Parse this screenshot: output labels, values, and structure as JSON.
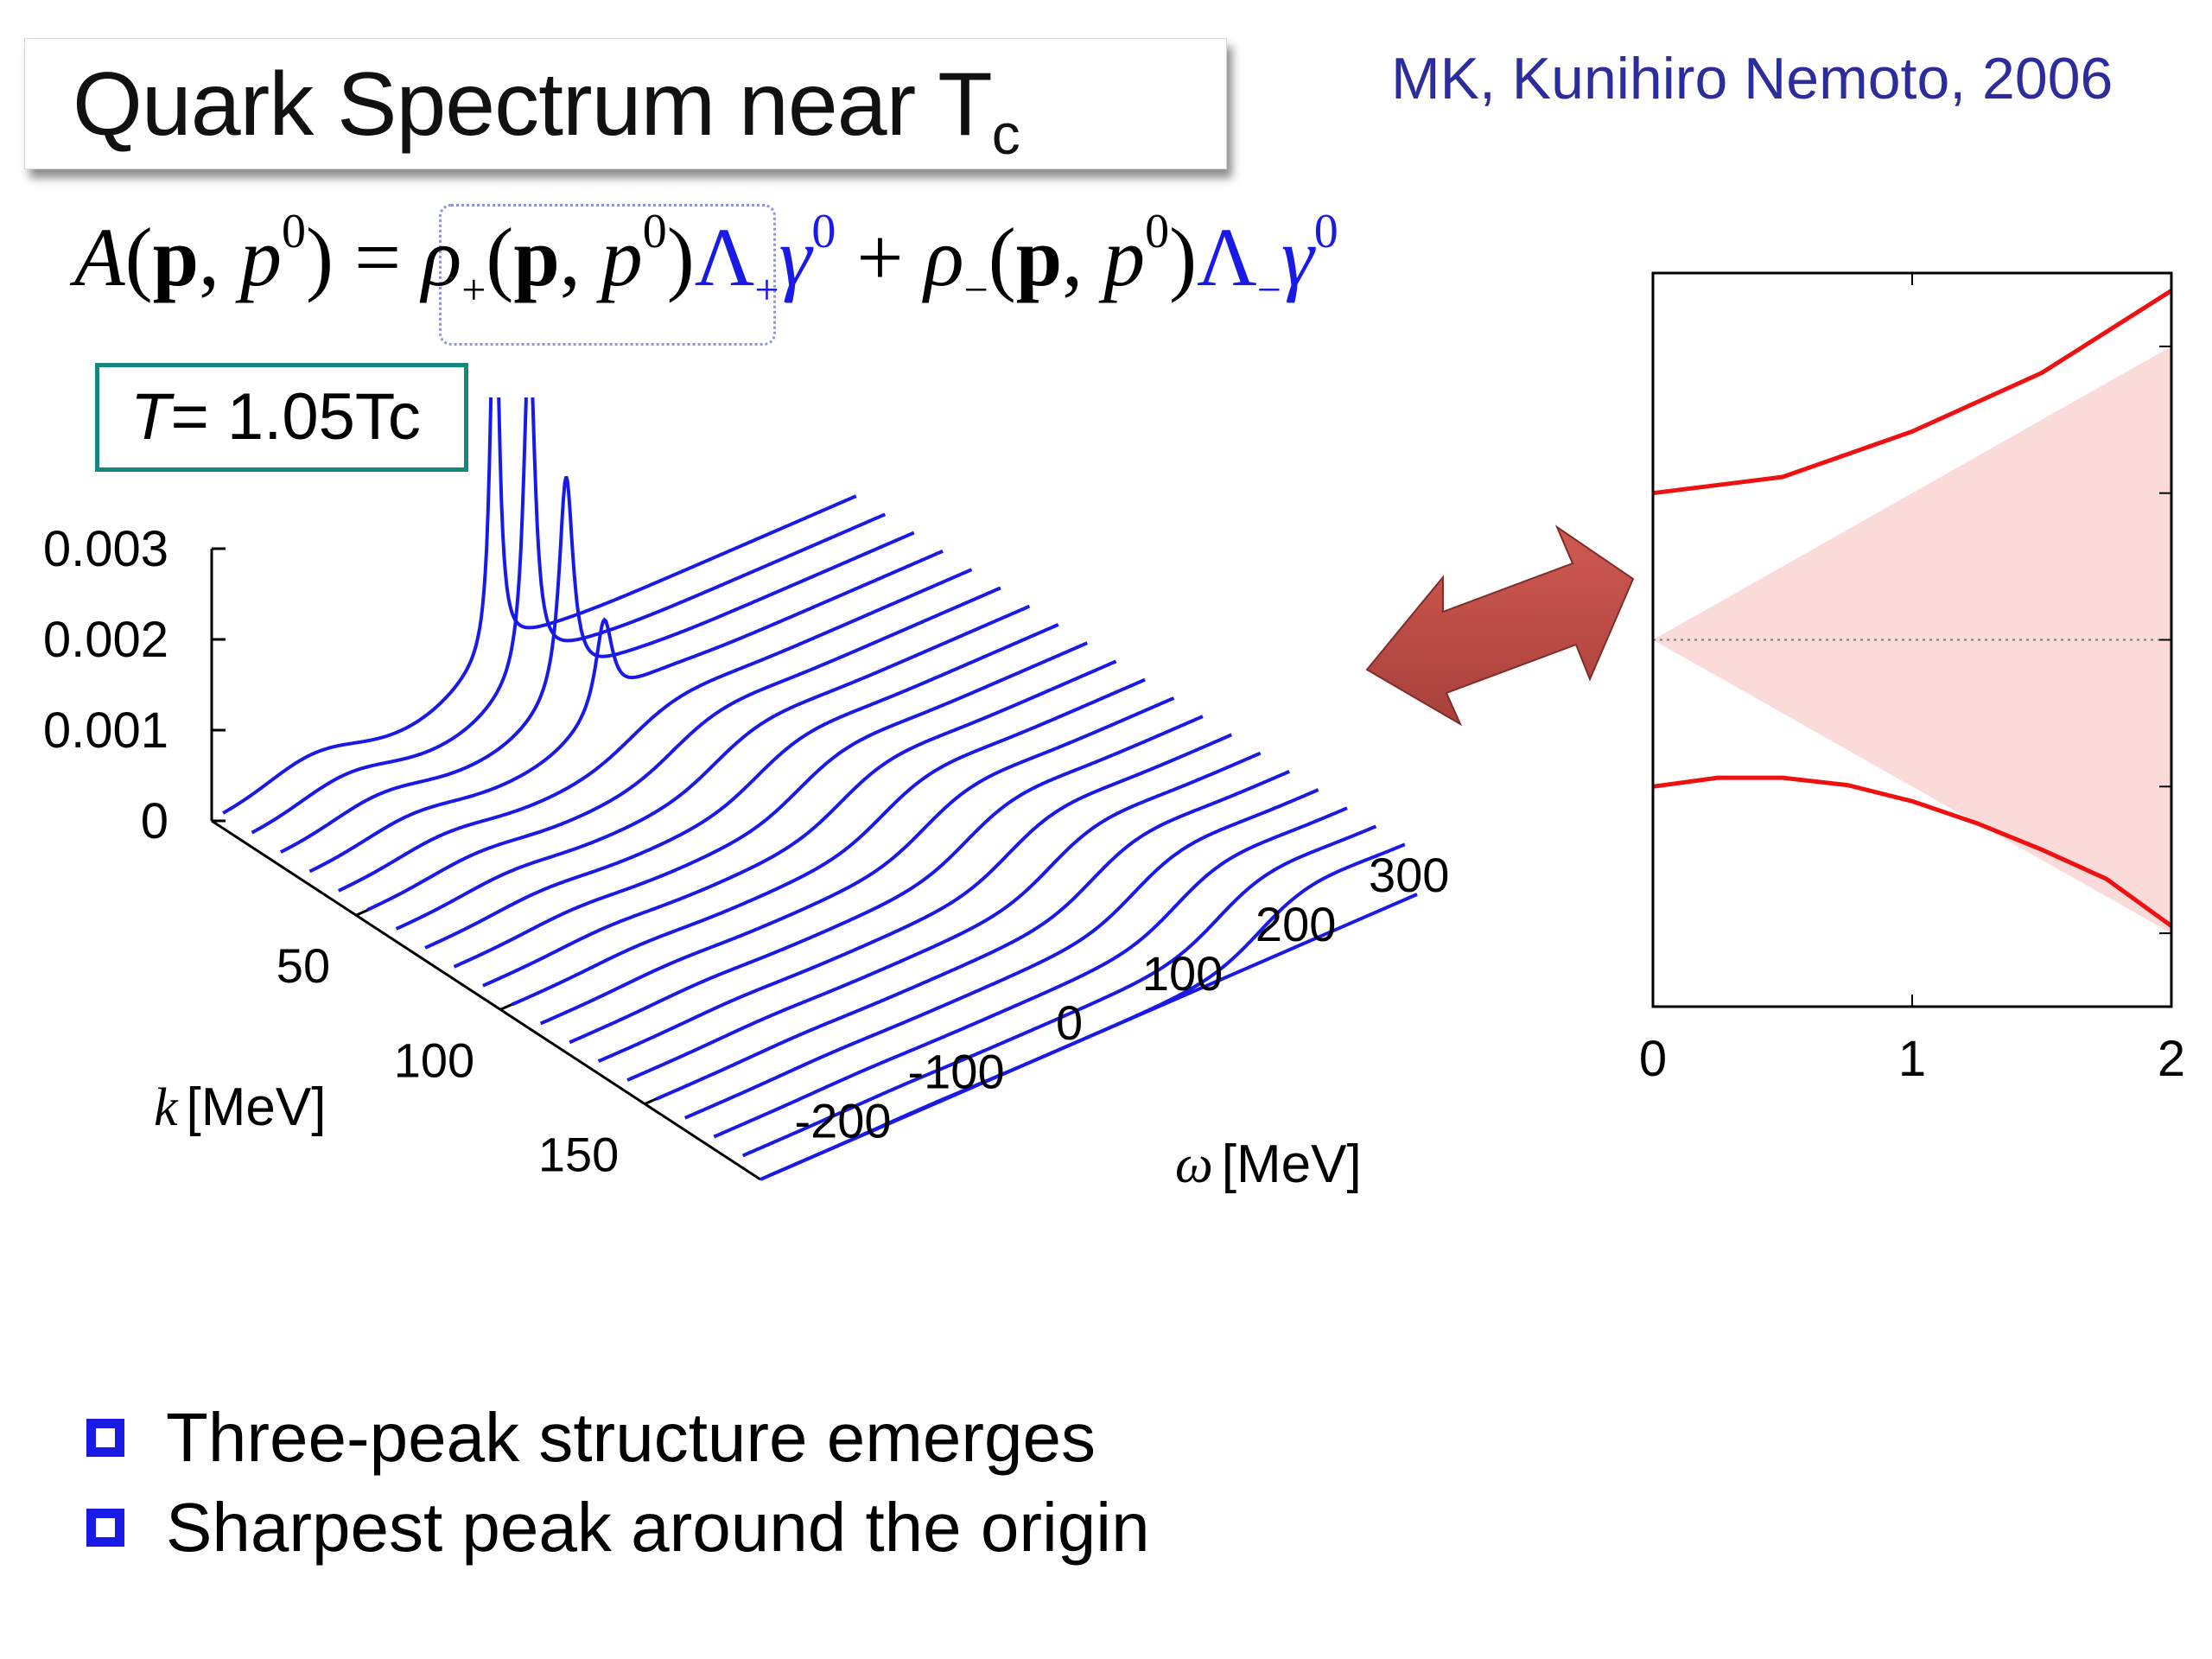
{
  "slide": {
    "title": "Quark Spectrum near T",
    "title_sub": "c",
    "credit": "MK, Kunihiro Nemoto, 2006",
    "temperature_label": "= 1.05Tc",
    "temperature_symbol": "T",
    "bullets": [
      "Three-peak structure emerges",
      "Sharpest peak around the origin"
    ]
  },
  "equation": {
    "lhs": "A",
    "bold_p": "p",
    "p0": "p",
    "sup0": "0",
    "rho": "ρ",
    "plus_sub": "+",
    "minus_sub": "−",
    "lambda": "Λ",
    "gamma": "γ",
    "equals": "=",
    "plus": "+"
  },
  "chart_data": [
    {
      "type": "line",
      "subtype": "3d-waterfall",
      "xlabel_symbol": "ω",
      "xlabel": "[MeV]",
      "ylabel_symbol": "k",
      "ylabel": "[MeV]",
      "x_ticks": [
        -200,
        -100,
        0,
        100,
        200,
        300
      ],
      "y_ticks": [
        50,
        100,
        150
      ],
      "z_ticks": [
        "0",
        "0.001",
        "0.002",
        "0.003"
      ],
      "xlim": [
        -250,
        330
      ],
      "ylim": [
        0,
        190
      ],
      "zlim": [
        0,
        0.003
      ],
      "k_values": [
        0,
        10,
        20,
        30,
        40,
        50,
        60,
        70,
        80,
        90,
        100,
        110,
        120,
        130,
        140,
        150,
        160,
        170,
        180,
        190
      ],
      "peaks": [
        {
          "k": 0,
          "omega": 0,
          "height": 0.0046
        },
        {
          "k": 10,
          "omega": 5,
          "height": 0.0038
        },
        {
          "k": 20,
          "omega": 12,
          "height": 0.0024
        },
        {
          "k": 30,
          "omega": 20,
          "height": 0.001
        }
      ],
      "color": "#1a1ae6"
    },
    {
      "type": "line",
      "x_ticks": [
        "0",
        "1",
        "2"
      ],
      "xlim": [
        0,
        2
      ],
      "ylim": [
        -2.5,
        2.5
      ],
      "series": [
        {
          "x": [
            0,
            0.5,
            1,
            1.5,
            2
          ],
          "y": [
            1.0,
            1.11,
            1.42,
            1.82,
            2.38
          ]
        },
        {
          "x": [
            0,
            0.25,
            0.5,
            0.75,
            1,
            1.25,
            1.5,
            1.75,
            2
          ],
          "y": [
            -1.0,
            -0.94,
            -0.94,
            -0.99,
            -1.1,
            -1.25,
            -1.43,
            -1.63,
            -1.95
          ]
        }
      ],
      "shaded_cone": true,
      "line_color": "#ee1111",
      "shade_color": "#fbdada"
    }
  ]
}
